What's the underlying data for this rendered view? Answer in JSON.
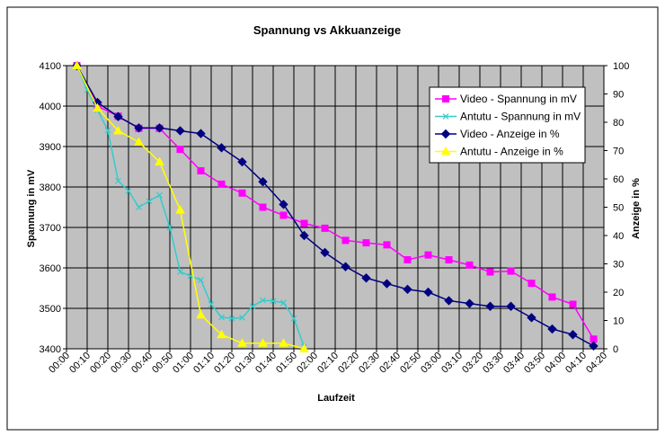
{
  "chart_data": {
    "type": "line",
    "title": "Spannung vs Akkuanzeige",
    "xlabel": "Laufzeit",
    "ylabel_left": "Spannung in mV",
    "ylabel_right": "Anzeige in %",
    "x_tick_labels": [
      "00:00",
      "00:10",
      "00:20",
      "00:30",
      "00:40",
      "00:50",
      "01:00",
      "01:10",
      "01:20",
      "01:30",
      "01:40",
      "01:50",
      "02:00",
      "02:10",
      "02:20",
      "02:30",
      "02:40",
      "02:50",
      "03:00",
      "03:10",
      "03:20",
      "03:30",
      "03:40",
      "03:50",
      "04:00",
      "04:10",
      "04:20"
    ],
    "x_unit": "minutes",
    "xlim": [
      0,
      260
    ],
    "ylim_left": [
      3400,
      4100
    ],
    "yticks_left": [
      3400,
      3500,
      3600,
      3700,
      3800,
      3900,
      4000,
      4100
    ],
    "ylim_right": [
      0,
      100
    ],
    "yticks_right": [
      0,
      10,
      20,
      30,
      40,
      50,
      60,
      70,
      80,
      90,
      100
    ],
    "grid": true,
    "plot_background": "#c0c0c0",
    "legend_position": "top-right",
    "series": [
      {
        "name": "Video - Spannung in mV",
        "axis": "left",
        "color": "#ff00ff",
        "marker": "square",
        "x": [
          5,
          15,
          25,
          35,
          45,
          55,
          65,
          75,
          85,
          95,
          105,
          115,
          125,
          135,
          145,
          155,
          165,
          175,
          185,
          195,
          205,
          215,
          225,
          235,
          245,
          255
        ],
        "y": [
          4100,
          4000,
          3975,
          3945,
          3945,
          3893,
          3840,
          3807,
          3785,
          3750,
          3730,
          3710,
          3698,
          3668,
          3662,
          3657,
          3620,
          3632,
          3620,
          3607,
          3590,
          3592,
          3562,
          3528,
          3510,
          3424
        ]
      },
      {
        "name": "Antutu - Spannung in mV",
        "axis": "left",
        "color": "#33cccc",
        "marker": "x",
        "x": [
          5,
          10,
          15,
          20,
          25,
          30,
          35,
          40,
          45,
          50,
          55,
          60,
          65,
          70,
          75,
          80,
          85,
          90,
          95,
          100,
          105,
          110,
          115
        ],
        "y": [
          4100,
          4040,
          3990,
          3940,
          3815,
          3790,
          3750,
          3765,
          3780,
          3700,
          3590,
          3580,
          3570,
          3510,
          3478,
          3475,
          3477,
          3505,
          3520,
          3518,
          3514,
          3475,
          3405
        ]
      },
      {
        "name": "Video - Anzeige in %",
        "axis": "right",
        "color": "#000080",
        "marker": "diamond",
        "x": [
          5,
          15,
          25,
          35,
          45,
          55,
          65,
          75,
          85,
          95,
          105,
          115,
          125,
          135,
          145,
          155,
          165,
          175,
          185,
          195,
          205,
          215,
          225,
          235,
          245,
          255
        ],
        "y": [
          100,
          87,
          82,
          78,
          78,
          77,
          76,
          71,
          66,
          59,
          51,
          40,
          34,
          29,
          25,
          23,
          21,
          20,
          17,
          16,
          15,
          15,
          11,
          7,
          5,
          1
        ]
      },
      {
        "name": "Antutu - Anzeige in %",
        "axis": "right",
        "color": "#ffff00",
        "marker": "triangle",
        "x": [
          5,
          15,
          25,
          35,
          45,
          55,
          65,
          75,
          85,
          95,
          105,
          115
        ],
        "y": [
          100,
          85,
          77,
          73,
          66,
          49,
          12,
          5,
          2,
          2,
          2,
          0
        ]
      }
    ]
  }
}
